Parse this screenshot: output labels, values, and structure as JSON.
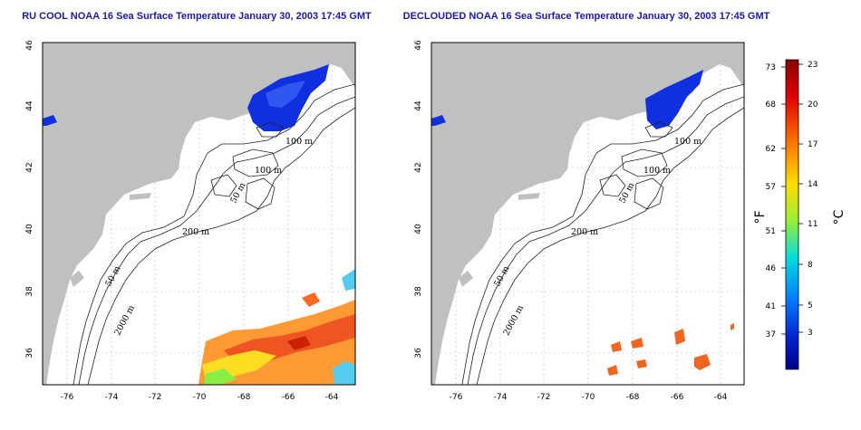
{
  "maps": [
    {
      "title": "RU COOL NOAA 16 Sea Surface Temperature January 30, 2003 17:45 GMT",
      "x_ticks": [
        "-76",
        "-74",
        "-72",
        "-70",
        "-68",
        "-66",
        "-64"
      ],
      "y_ticks": [
        "36",
        "38",
        "40",
        "42",
        "44",
        "46"
      ],
      "contour_labels": [
        "100 m",
        "100 m",
        "50 m",
        "200 m",
        "50 m",
        "2000 m"
      ]
    },
    {
      "title": "DECLOUDED NOAA 16 Sea Surface Temperature January 30, 2003 17:45 GMT",
      "x_ticks": [
        "-76",
        "-74",
        "-72",
        "-70",
        "-68",
        "-66",
        "-64"
      ],
      "y_ticks": [
        "36",
        "38",
        "40",
        "42",
        "44",
        "46"
      ],
      "contour_labels": [
        "100 m",
        "100 m",
        "50 m",
        "200 m",
        "50 m",
        "2000 m"
      ]
    }
  ],
  "colorbar": {
    "fahrenheit_label": "°F",
    "celsius_label": "°C",
    "fahrenheit_ticks": [
      "73",
      "68",
      "62",
      "57",
      "51",
      "46",
      "41",
      "37"
    ],
    "celsius_ticks": [
      "23",
      "20",
      "17",
      "14",
      "11",
      "8",
      "5",
      "3"
    ],
    "colors": [
      "#8b0000",
      "#ff3300",
      "#ff9900",
      "#ffee00",
      "#88ff44",
      "#00ddee",
      "#0066ff",
      "#0000aa"
    ]
  },
  "colors": {
    "land": "#c0c0c0",
    "cold_water": "#1030e0",
    "title_text": "#1a1aa6"
  }
}
